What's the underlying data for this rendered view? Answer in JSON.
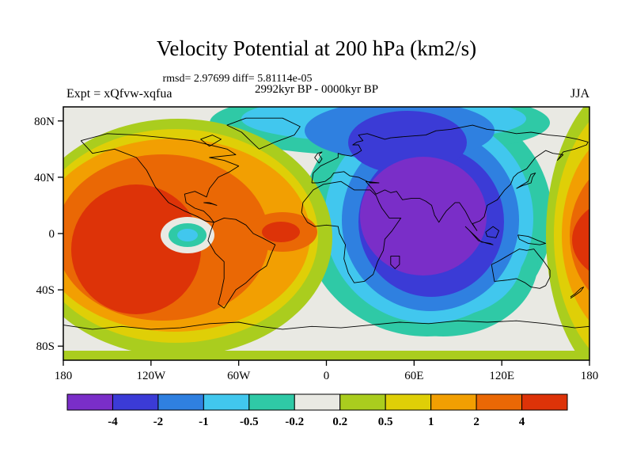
{
  "title": "Velocity Potential at 200 hPa (km2/s)",
  "stats_line": "rmsd= 2.97699 diff= 5.81114e-05",
  "period_line": "2992kyr BP - 0000kyr BP",
  "expt_label": "Expt = xQfvw-xqfua",
  "season_label": "JJA",
  "axes": {
    "lat_ticks": [
      {
        "label": "80N",
        "lat": 80
      },
      {
        "label": "40N",
        "lat": 40
      },
      {
        "label": "0",
        "lat": 0
      },
      {
        "label": "40S",
        "lat": -40
      },
      {
        "label": "80S",
        "lat": -80
      }
    ],
    "lon_ticks": [
      {
        "label": "180",
        "lon": -180
      },
      {
        "label": "120W",
        "lon": -120
      },
      {
        "label": "60W",
        "lon": -60
      },
      {
        "label": "0",
        "lon": 0
      },
      {
        "label": "60E",
        "lon": 60
      },
      {
        "label": "120E",
        "lon": 120
      },
      {
        "label": "180",
        "lon": 180
      }
    ]
  },
  "colorbar": {
    "levels": [
      "-4",
      "-2",
      "-1",
      "-0.5",
      "-0.2",
      "0.2",
      "0.5",
      "1",
      "2",
      "4"
    ],
    "colors": [
      "#7A2EC8",
      "#3B3BD6",
      "#2F80E0",
      "#41C7EE",
      "#2FC9A6",
      "#E9E9E3",
      "#AACD1E",
      "#DFCF07",
      "#F29F02",
      "#EA6805",
      "#DD3308"
    ]
  },
  "chart_data": {
    "type": "heatmap",
    "subtype": "filled-contour-world-map",
    "title": "Velocity Potential at 200 hPa (km2/s)",
    "variable": "velocity potential",
    "pressure_level": "200 hPa",
    "units": "km2/s",
    "season": "JJA",
    "experiment": "xQfvw-xqfua",
    "difference": "2992kyr BP - 0000kyr BP",
    "rmsd": 2.97699,
    "diff": 5.81114e-05,
    "contour_levels": [
      -4,
      -2,
      -1,
      -0.5,
      -0.2,
      0.2,
      0.5,
      1,
      2,
      4
    ],
    "palette": [
      "#7A2EC8",
      "#3B3BD6",
      "#2F80E0",
      "#41C7EE",
      "#2FC9A6",
      "#E9E9E3",
      "#AACD1E",
      "#DFCF07",
      "#F29F02",
      "#EA6805",
      "#DD3308"
    ],
    "lon_range": [
      -180,
      180
    ],
    "lat_range": [
      -90,
      90
    ],
    "projection": "equirectangular",
    "grid": false,
    "legend_position": "bottom-colorbar",
    "centers": [
      {
        "region": "central/eastern tropical Pacific (~130W, 15S)",
        "sign": "positive",
        "value": "> 4"
      },
      {
        "region": "tropical Atlantic (~50W, 0)",
        "sign": "positive",
        "value": "> 4"
      },
      {
        "region": "west Pacific at date line (right map edge, ~175E, 0)",
        "sign": "positive",
        "value": "> 4"
      },
      {
        "region": "Indian Ocean / South Asia (~60E, 15N)",
        "sign": "negative",
        "value": "< -4"
      },
      {
        "region": "small eastern equatorial Pacific spot (~100W, 0)",
        "sign": "negative",
        "value": "-1 to -0.5"
      },
      {
        "region": "high northern latitudes 0-120E",
        "sign": "negative",
        "value": "-1 to -0.2"
      },
      {
        "region": "southern high latitudes band",
        "sign": "near zero",
        "value": "-0.2 to 0.5"
      }
    ]
  }
}
